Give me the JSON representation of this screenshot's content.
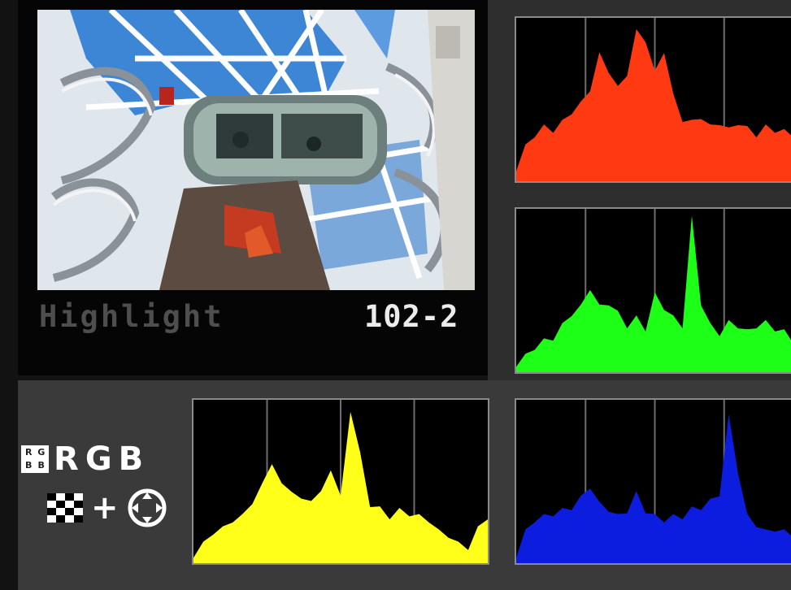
{
  "preview": {
    "mode_label": "Highlight",
    "file_number": "102-2"
  },
  "display_mode": {
    "icon_glyphs": [
      "R",
      "G",
      "B",
      "B"
    ],
    "channels": [
      "R",
      "G",
      "B"
    ],
    "plus": "+"
  },
  "histograms": [
    {
      "channel": "red",
      "color": "#ff3a12"
    },
    {
      "channel": "green",
      "color": "#1dff17"
    },
    {
      "channel": "blue",
      "color": "#0d1de0"
    },
    {
      "channel": "luminance",
      "color": "#ffff1a"
    }
  ]
}
